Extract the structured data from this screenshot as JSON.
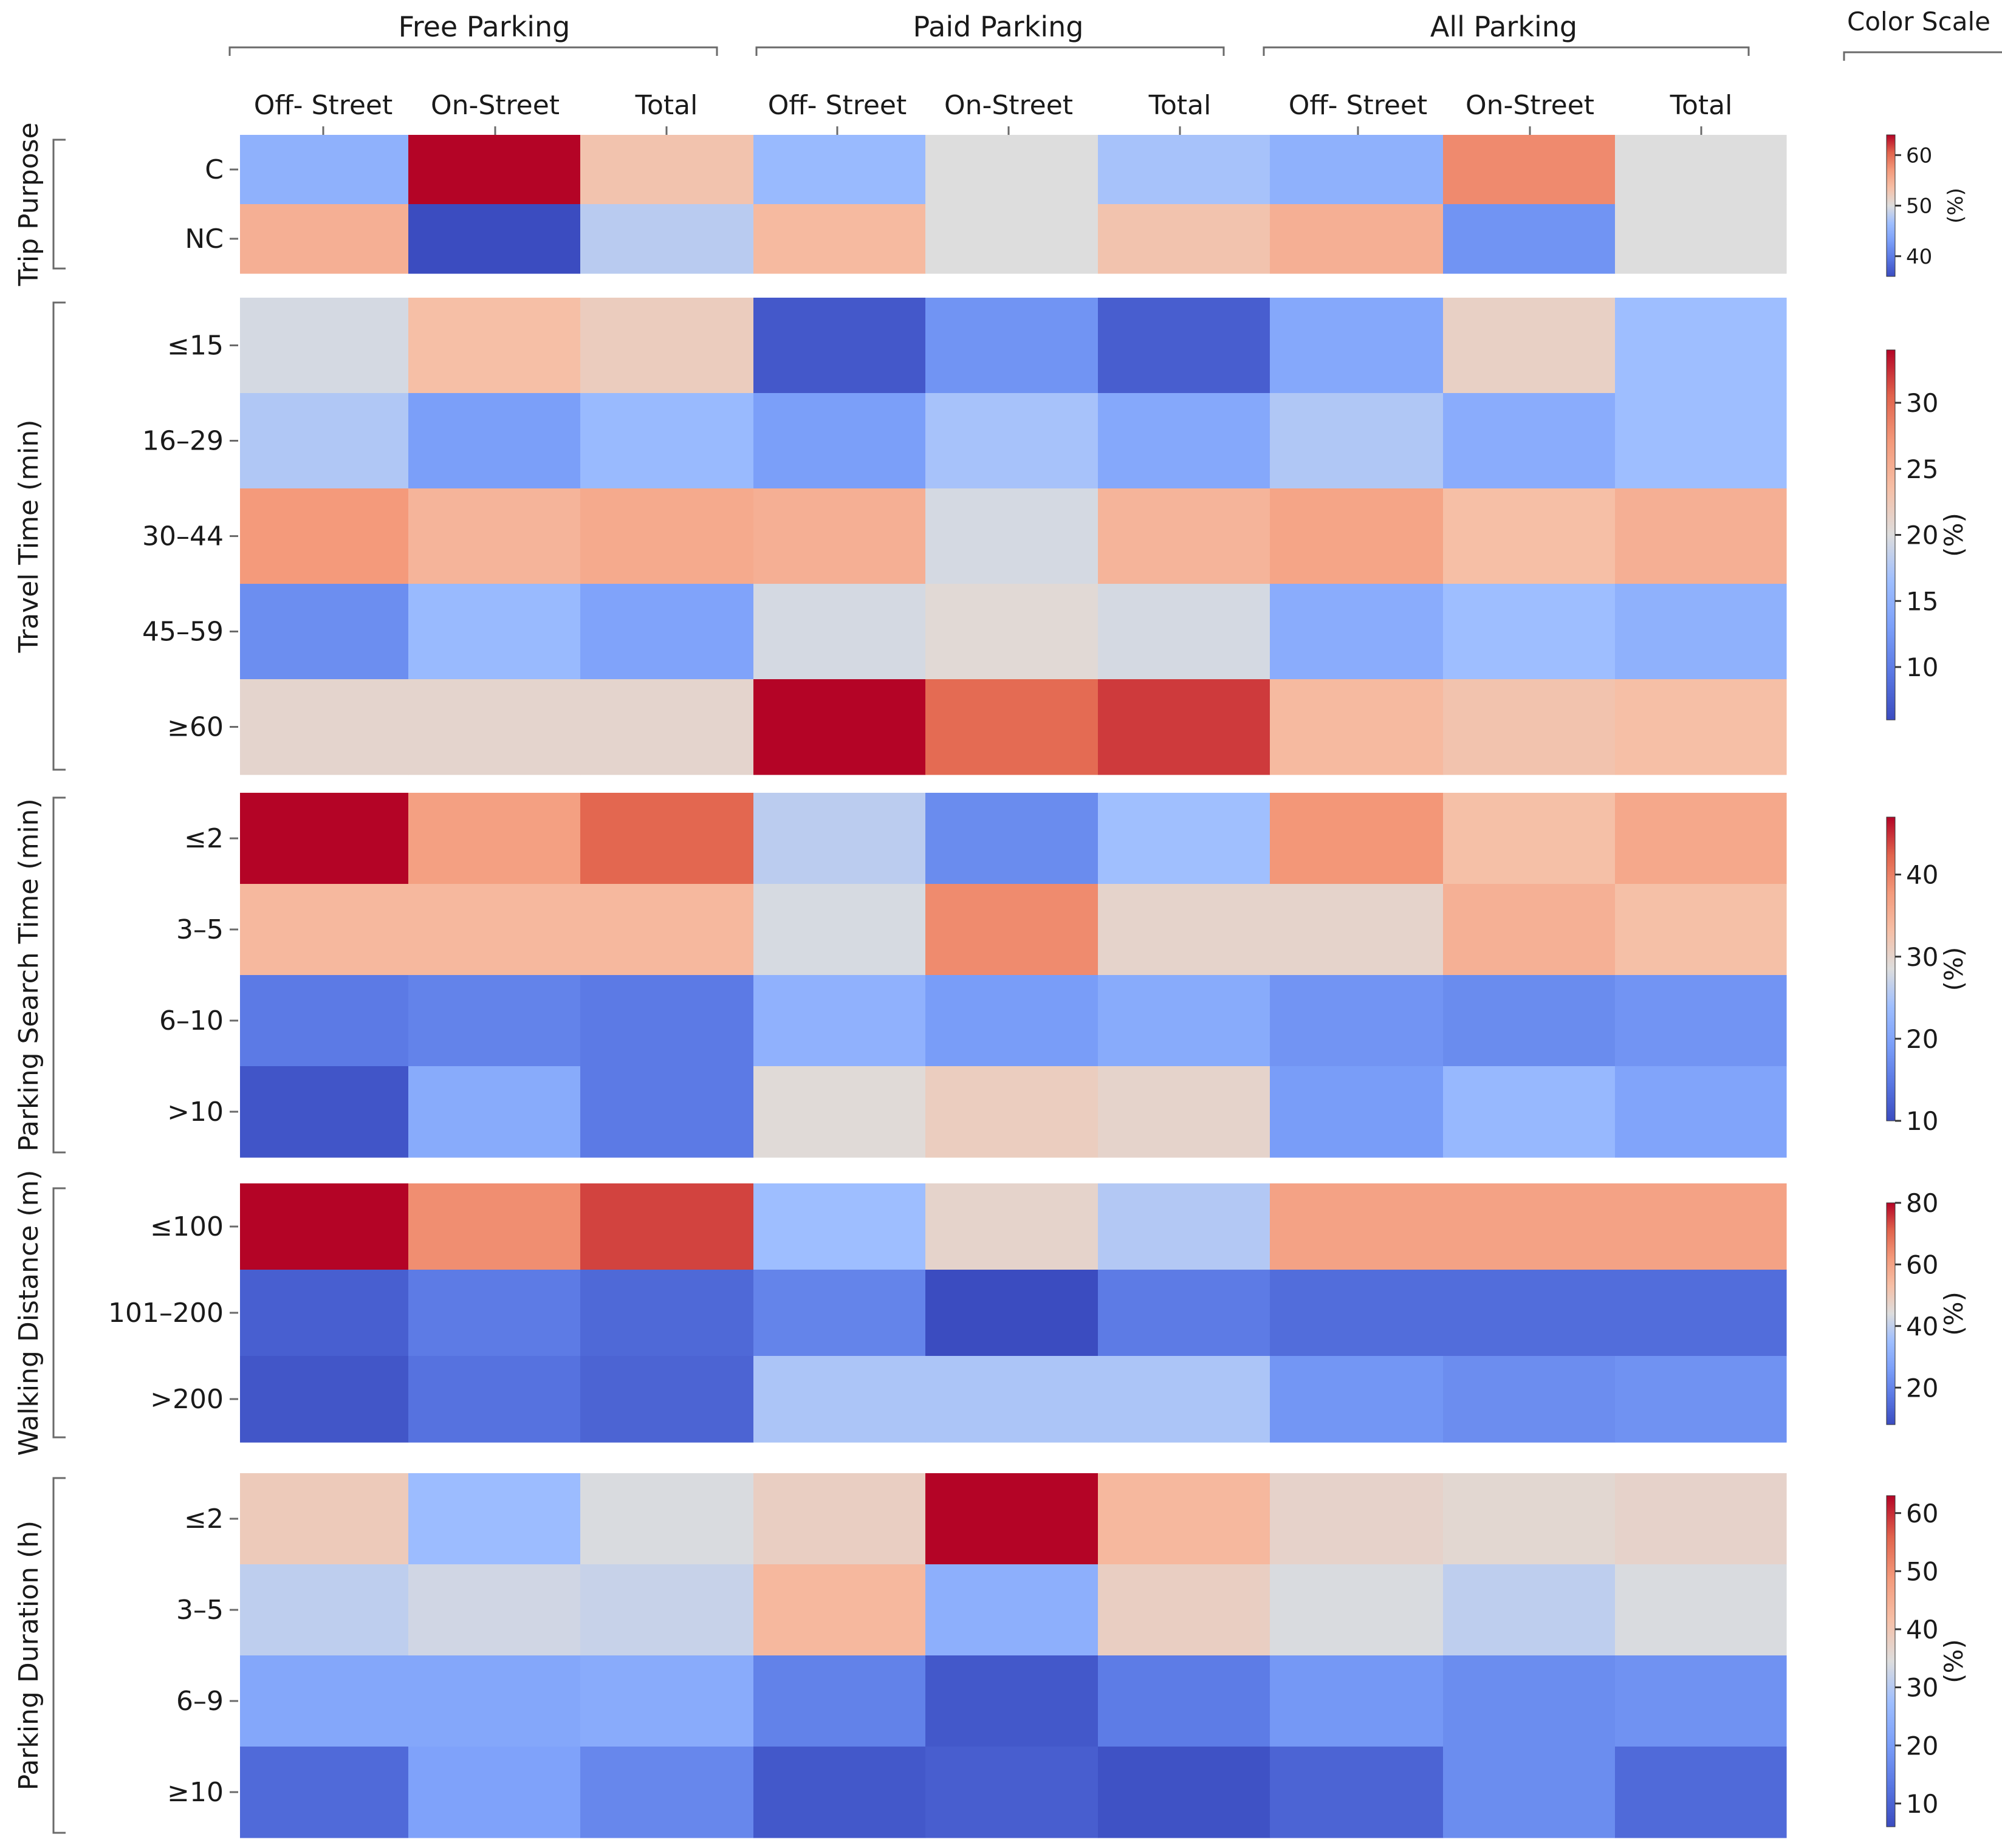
{
  "chart_data": {
    "type": "heatmap",
    "header_groups": [
      "Free Parking",
      "Paid Parking",
      "All Parking"
    ],
    "columns": [
      "Off- Street",
      "On-Street",
      "Total",
      "Off- Street",
      "On-Street",
      "Total",
      "Off- Street",
      "On-Street",
      "Total"
    ],
    "color_scale_label": "Color Scale",
    "colormap": "coolwarm",
    "unit_label": "(%)",
    "panels": [
      {
        "name": "Trip Purpose",
        "rows": [
          "C",
          "NC"
        ],
        "vmin": 36,
        "vmax": 64,
        "cbar_ticks": [
          40,
          50,
          60
        ],
        "values": [
          [
            45,
            64,
            53,
            46,
            50,
            47,
            45,
            58,
            50
          ],
          [
            55,
            36,
            48,
            54,
            50,
            53,
            55,
            42,
            50
          ]
        ]
      },
      {
        "name": "Travel Time (min)",
        "rows": [
          "≤15",
          "16–29",
          "30–44",
          "45–59",
          "≥60"
        ],
        "vmin": 6,
        "vmax": 34,
        "cbar_ticks": [
          10,
          15,
          20,
          25,
          30
        ],
        "values": [
          [
            19.5,
            23.5,
            22,
            7,
            12,
            7.5,
            14,
            21.5,
            16.5
          ],
          [
            17.5,
            13,
            16,
            13,
            17,
            14,
            17.5,
            14.5,
            16.5
          ],
          [
            27,
            24.5,
            25.5,
            25,
            19.5,
            24.5,
            26,
            23.5,
            25
          ],
          [
            11.5,
            16,
            13.5,
            19.5,
            20.5,
            19.5,
            14.5,
            16.5,
            15
          ],
          [
            21,
            21,
            21,
            34,
            30,
            32,
            24,
            23,
            23.5
          ]
        ]
      },
      {
        "name": "Parking Search Time (min)",
        "rows": [
          "≤2",
          "3–5",
          "6–10",
          ">10"
        ],
        "vmin": 10,
        "vmax": 47,
        "cbar_ticks": [
          10,
          20,
          30,
          40
        ],
        "values": [
          [
            47,
            37,
            42,
            26,
            17,
            24,
            38,
            33,
            36
          ],
          [
            34,
            34,
            34,
            28,
            39,
            30,
            30,
            35,
            33
          ],
          [
            15,
            16,
            15,
            22,
            19,
            21,
            18,
            17,
            18
          ],
          [
            11,
            21,
            15,
            29,
            31,
            30,
            19,
            23,
            20
          ]
        ]
      },
      {
        "name": "Walking Distance (m)",
        "rows": [
          "≤100",
          "101–200",
          ">200"
        ],
        "vmin": 8,
        "vmax": 80,
        "cbar_ticks": [
          20,
          40,
          60,
          80
        ],
        "values": [
          [
            80,
            64,
            74,
            35,
            47,
            38,
            60,
            60,
            60
          ],
          [
            12,
            18,
            14,
            20,
            8,
            18,
            15,
            15,
            15
          ],
          [
            10,
            16,
            13,
            37,
            37,
            37,
            24,
            22,
            23
          ]
        ]
      },
      {
        "name": "Parking Duration (h)",
        "rows": [
          "≤2",
          "3–5",
          "6–9",
          "≥10"
        ],
        "vmin": 6,
        "vmax": 63,
        "cbar_ticks": [
          10,
          20,
          30,
          40,
          50,
          60
        ],
        "values": [
          [
            39,
            27,
            34,
            38,
            63,
            43,
            37,
            36,
            37
          ],
          [
            31,
            33,
            32,
            43,
            24,
            38,
            34,
            31,
            34
          ],
          [
            22,
            22,
            23,
            15,
            8,
            14,
            19,
            17,
            18
          ],
          [
            11,
            21,
            16,
            8,
            9,
            7,
            10,
            17,
            11
          ]
        ]
      }
    ]
  }
}
